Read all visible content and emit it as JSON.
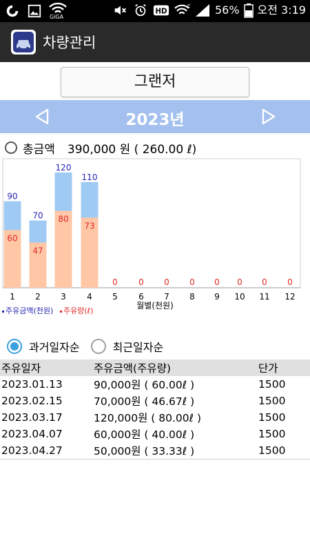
{
  "status_bar": {
    "left_icons": [
      "g-icon",
      "image-icon",
      "wifi-giga-icon"
    ],
    "giga_label": "GiGA",
    "right_icons": [
      "mute-icon",
      "alarm-icon",
      "hd-icon",
      "wifi-icon",
      "signal-icon",
      "battery-icon"
    ],
    "battery": "56%",
    "time": "오전 3:19"
  },
  "app_bar": {
    "title": "차량관리",
    "icon": "car-icon"
  },
  "vehicle": {
    "name": "그랜저"
  },
  "year_nav": {
    "year": "2023년",
    "prev_icon": "triangle-left-icon",
    "next_icon": "triangle-right-icon"
  },
  "total": {
    "label": "총금액",
    "value": "390,000 원 ( 260.00 ℓ)"
  },
  "chart_data": {
    "type": "bar",
    "categories": [
      "1",
      "2",
      "3",
      "4",
      "5",
      "6",
      "7",
      "8",
      "9",
      "10",
      "11",
      "12"
    ],
    "series": [
      {
        "name": "주유금액(천원)",
        "values": [
          90,
          70,
          120,
          110,
          0,
          0,
          0,
          0,
          0,
          0,
          0,
          0
        ],
        "color": "#9fcaf4",
        "label_color": "#2424b4"
      },
      {
        "name": "주유량(ℓ)",
        "values": [
          60,
          47,
          80,
          73,
          0,
          0,
          0,
          0,
          0,
          0,
          0,
          0
        ],
        "color": "#ffc7a6",
        "label_color": "#e02828"
      }
    ],
    "value_labels": {
      "amount": [
        "90",
        "70",
        "120",
        "110",
        "",
        "",
        "",
        "",
        "",
        "",
        "",
        ""
      ],
      "fuel": [
        "60",
        "47",
        "80",
        "73",
        "0",
        "0",
        "0",
        "0",
        "0",
        "0",
        "0",
        "0"
      ]
    },
    "xlabel": "월별(천원)",
    "ylim": [
      0,
      130
    ],
    "legend_placement": "bottom-left"
  },
  "sort": {
    "options": [
      {
        "label": "과거일자순",
        "selected": true
      },
      {
        "label": "최근일자순",
        "selected": false
      }
    ]
  },
  "table": {
    "headers": [
      "주유일자",
      "주유금액(주유량)",
      "단가"
    ],
    "rows": [
      [
        "2023.01.13",
        "90,000원 ( 60.00ℓ )",
        "1500"
      ],
      [
        "2023.02.15",
        "70,000원 ( 46.67ℓ )",
        "1500"
      ],
      [
        "2023.03.17",
        "120,000원 ( 80.00ℓ )",
        "1500"
      ],
      [
        "2023.04.07",
        "60,000원 ( 40.00ℓ )",
        "1500"
      ],
      [
        "2023.04.27",
        "50,000원 ( 33.33ℓ )",
        "1500"
      ]
    ]
  }
}
